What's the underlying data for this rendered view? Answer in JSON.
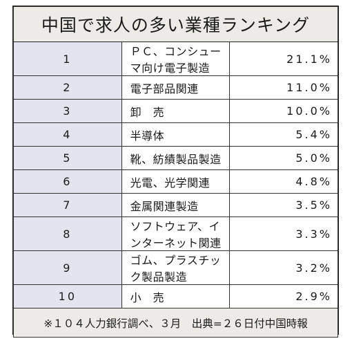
{
  "title": "中国で求人の多い業種ランキング",
  "rows": [
    {
      "rank": "1",
      "industry": "ＰＣ、コンシューマ向け電子製造",
      "share": "21.1%"
    },
    {
      "rank": "2",
      "industry": "電子部品関連",
      "share": "11.0%"
    },
    {
      "rank": "3",
      "industry": "卸　売",
      "share": "10.0%"
    },
    {
      "rank": "4",
      "industry": "半導体",
      "share": "5.4%"
    },
    {
      "rank": "5",
      "industry": "靴、紡績製品製造",
      "share": "5.0%"
    },
    {
      "rank": "6",
      "industry": "光電、光学関連",
      "share": "4.8%"
    },
    {
      "rank": "7",
      "industry": "金属関連製造",
      "share": "3.5%"
    },
    {
      "rank": "8",
      "industry": "ソフトウェア、インターネット関連",
      "share": "3.3%"
    },
    {
      "rank": "9",
      "industry": "ゴム、プラスチック製品製造",
      "share": "3.2%"
    },
    {
      "rank": "10",
      "industry": "小　売",
      "share": "2.9%"
    }
  ],
  "note": "※１０４人力銀行調べ、３月　出典=２６日付中国時報",
  "colors": {
    "title_bg": "#ecebe5",
    "rank_bg": "#e4e4f0",
    "note_bg": "#ecebe5",
    "border": "#333333"
  }
}
